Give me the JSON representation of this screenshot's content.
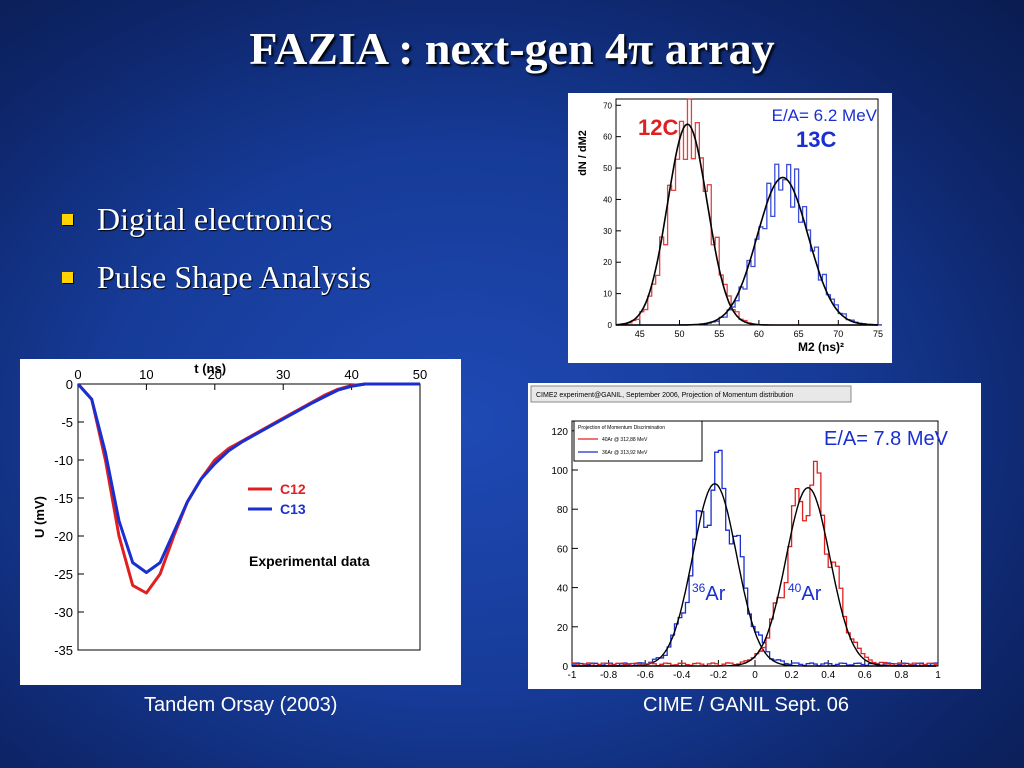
{
  "slide": {
    "title": "FAZIA : next-gen 4π array",
    "bullets": [
      "Digital electronics",
      "Pulse Shape Analysis"
    ],
    "captions": {
      "left": "Tandem Orsay (2003)",
      "right": "CIME / GANIL Sept. 06"
    }
  },
  "colors": {
    "red": "#e02020",
    "blue": "#1a2fd0",
    "accent": "#ffd200"
  },
  "chart_data": [
    {
      "type": "line",
      "xlabel": "t (ns)",
      "ylabel": "U (mV)",
      "xlim": [
        0,
        50
      ],
      "ylim": [
        -35,
        0
      ],
      "x_ticks": [
        0,
        10,
        20,
        30,
        40,
        50
      ],
      "y_ticks": [
        0,
        -5,
        -10,
        -15,
        -20,
        -25,
        -30,
        -35
      ],
      "annotation": "Experimental data",
      "series": [
        {
          "name": "C12",
          "color": "red",
          "x": [
            0,
            2,
            4,
            6,
            8,
            10,
            12,
            14,
            16,
            18,
            20,
            22,
            24,
            26,
            28,
            30,
            32,
            34,
            36,
            38,
            40,
            42,
            44,
            46,
            48,
            50
          ],
          "y": [
            0,
            -2,
            -10,
            -20,
            -26.5,
            -27.5,
            -25,
            -20,
            -15.5,
            -12.5,
            -10,
            -8.5,
            -7.5,
            -6.5,
            -5.5,
            -4.5,
            -3.5,
            -2.5,
            -1.5,
            -0.7,
            -0.2,
            0,
            0,
            0,
            0,
            0
          ]
        },
        {
          "name": "C13",
          "color": "blue",
          "x": [
            0,
            2,
            4,
            6,
            8,
            10,
            12,
            14,
            16,
            18,
            20,
            22,
            24,
            26,
            28,
            30,
            32,
            34,
            36,
            38,
            40,
            42,
            44,
            46,
            48,
            50
          ],
          "y": [
            0,
            -2,
            -9,
            -18,
            -23.5,
            -24.8,
            -23.5,
            -19.5,
            -15.5,
            -12.5,
            -10.5,
            -8.8,
            -7.6,
            -6.6,
            -5.6,
            -4.6,
            -3.6,
            -2.6,
            -1.7,
            -0.8,
            -0.3,
            0,
            0,
            0,
            0,
            0
          ]
        }
      ]
    },
    {
      "type": "line",
      "annotation": "E/A= 6.2 MeV",
      "ylabel": "dN / dM2",
      "xlabel": "M2 (ns)²",
      "xlim": [
        42,
        75
      ],
      "ylim": [
        0,
        72
      ],
      "x_ticks": [
        45,
        50,
        55,
        60,
        65,
        70,
        75
      ],
      "y_ticks": [
        0,
        10,
        20,
        30,
        40,
        50,
        60,
        70
      ],
      "series": [
        {
          "name": "12C",
          "color": "red",
          "mean": 51,
          "sigma": 2.5,
          "amplitude": 64
        },
        {
          "name": "13C",
          "color": "blue",
          "mean": 63,
          "sigma": 3.2,
          "amplitude": 47
        }
      ]
    },
    {
      "type": "line",
      "title": "CIME2 experiment@GANIL, September 2006, Projection of Momentum distribution",
      "annotation": "E/A= 7.8 MeV",
      "legend_title": "Projection of Momentum Discrimination",
      "legend_entries": [
        "40Ar @ 312,88 MeV",
        "36Ar @ 313,92 MeV"
      ],
      "xlim": [
        -1,
        1
      ],
      "ylim": [
        0,
        125
      ],
      "x_ticks": [
        -1,
        -0.8,
        -0.6,
        -0.4,
        -0.2,
        0,
        0.2,
        0.4,
        0.6,
        0.8,
        1
      ],
      "y_ticks": [
        0,
        20,
        40,
        60,
        80,
        100,
        120
      ],
      "series": [
        {
          "name": "36Ar",
          "color": "blue",
          "mean": -0.22,
          "sigma": 0.12,
          "amplitude": 93
        },
        {
          "name": "40Ar",
          "color": "red",
          "mean": 0.29,
          "sigma": 0.12,
          "amplitude": 91
        }
      ]
    }
  ]
}
